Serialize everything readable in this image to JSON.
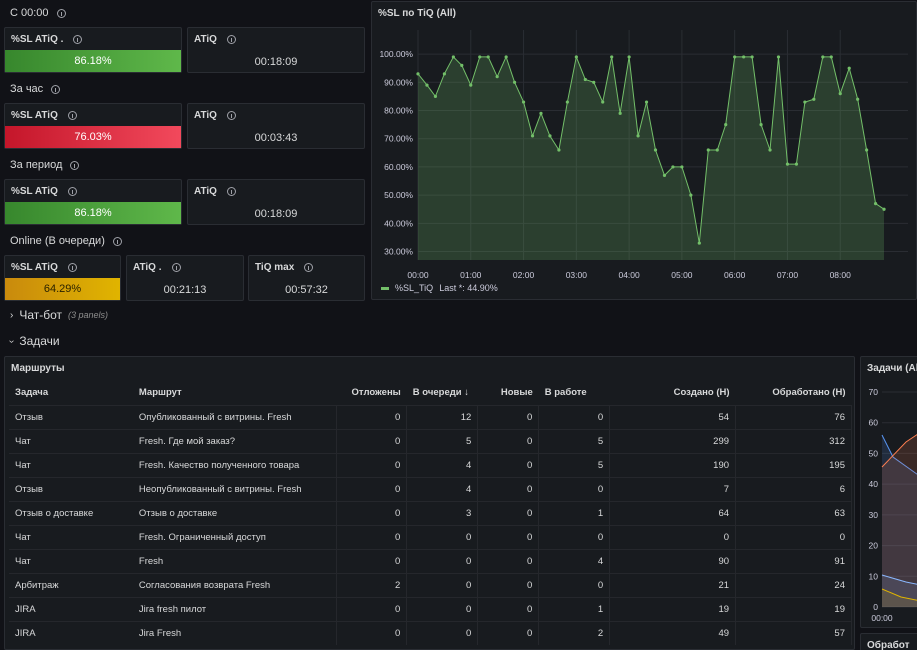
{
  "sections": {
    "today": "С 00:00",
    "hour": "За час",
    "period": "За период",
    "online": "Online (В очереди)"
  },
  "stats": {
    "today_sl": {
      "title": "%SL ATiQ .",
      "value": "86.18%"
    },
    "today_atiq": {
      "title": "ATiQ",
      "value": "00:18:09"
    },
    "hour_sl": {
      "title": "%SL ATiQ",
      "value": "76.03%"
    },
    "hour_atiq": {
      "title": "ATiQ",
      "value": "00:03:43"
    },
    "period_sl": {
      "title": "%SL ATiQ",
      "value": "86.18%"
    },
    "period_atiq": {
      "title": "ATiQ",
      "value": "00:18:09"
    },
    "online_sl": {
      "title": "%SL ATiQ",
      "value": "64.29%"
    },
    "online_atiq": {
      "title": "ATiQ .",
      "value": "00:21:13"
    },
    "online_max": {
      "title": "TiQ max",
      "value": "00:57:32"
    }
  },
  "colors": {
    "green": "#73bf69",
    "red": "#f2495c",
    "yellow": "#e0b400"
  },
  "chart_panel": {
    "title": "%SL по TiQ (All)",
    "legend_name": "%SL_TiQ",
    "legend_last": "Last *: 44.90%"
  },
  "chart_data": {
    "type": "area",
    "xlabel": "",
    "ylabel": "",
    "ylim": [
      27,
      105
    ],
    "yticks": [
      "100.00%",
      "90.00%",
      "80.00%",
      "70.00%",
      "60.00%",
      "50.00%",
      "40.00%",
      "30.00%"
    ],
    "xticks": [
      "00:00",
      "01:00",
      "02:00",
      "03:00",
      "04:00",
      "05:00",
      "06:00",
      "07:00",
      "08:00"
    ],
    "x_hours": [
      0.0,
      0.17,
      0.33,
      0.5,
      0.67,
      0.83,
      1.0,
      1.17,
      1.33,
      1.5,
      1.67,
      1.83,
      2.0,
      2.17,
      2.33,
      2.5,
      2.67,
      2.83,
      3.0,
      3.17,
      3.33,
      3.5,
      3.67,
      3.83,
      4.0,
      4.17,
      4.33,
      4.5,
      4.67,
      4.83,
      5.0,
      5.17,
      5.33,
      5.5,
      5.67,
      5.83,
      6.0,
      6.17,
      6.33,
      6.5,
      6.67,
      6.83,
      7.0,
      7.17,
      7.33,
      7.5,
      7.67,
      7.83,
      8.0,
      8.17,
      8.33,
      8.5,
      8.67,
      8.83
    ],
    "series": [
      {
        "name": "%SL_TiQ",
        "values": [
          93,
          89,
          85,
          93,
          99,
          96,
          89,
          99,
          99,
          92,
          99,
          90,
          83,
          71,
          79,
          71,
          66,
          83,
          99,
          91,
          90,
          83,
          99,
          79,
          99,
          71,
          83,
          66,
          57,
          60,
          60,
          50,
          33,
          66,
          66,
          75,
          99,
          99,
          99,
          75,
          66,
          99,
          61,
          61,
          83,
          84,
          99,
          99,
          86,
          95,
          84,
          66,
          47,
          45
        ]
      }
    ],
    "grid": true,
    "legend": "bottom-left"
  },
  "rows": {
    "chatbot": {
      "label": "Чат-бот",
      "note": "(3 panels)",
      "chevron": "›"
    },
    "tasks": {
      "label": "Задачи",
      "chevron": "›"
    }
  },
  "routes": {
    "title": "Маршруты",
    "headers": [
      "Задача",
      "Маршрут",
      "Отложены",
      "В очереди",
      "Новые",
      "В работе",
      "Создано (Н)",
      "Обработано (Н)"
    ],
    "sort_arrow": "↓",
    "rows": [
      [
        "Отзыв",
        "Опубликованный с витрины. Fresh",
        "0",
        "12",
        "0",
        "0",
        "54",
        "76"
      ],
      [
        "Чат",
        "Fresh. Где мой заказ?",
        "0",
        "5",
        "0",
        "5",
        "299",
        "312"
      ],
      [
        "Чат",
        "Fresh. Качество полученного товара",
        "0",
        "4",
        "0",
        "5",
        "190",
        "195"
      ],
      [
        "Отзыв",
        "Неопубликованный с витрины. Fresh",
        "0",
        "4",
        "0",
        "0",
        "7",
        "6"
      ],
      [
        "Отзыв о доставке",
        "Отзыв о доставке",
        "0",
        "3",
        "0",
        "1",
        "64",
        "63"
      ],
      [
        "Чат",
        "Fresh. Ограниченный доступ",
        "0",
        "0",
        "0",
        "0",
        "0",
        "0"
      ],
      [
        "Чат",
        "Fresh",
        "0",
        "0",
        "0",
        "4",
        "90",
        "91"
      ],
      [
        "Арбитраж",
        "Согласования возврата Fresh",
        "2",
        "0",
        "0",
        "0",
        "21",
        "24"
      ],
      [
        "JIRA",
        "Jira fresh пилот",
        "0",
        "0",
        "0",
        "1",
        "19",
        "19"
      ],
      [
        "JIRA",
        "Jira Fresh",
        "0",
        "0",
        "0",
        "2",
        "49",
        "57"
      ]
    ]
  },
  "tasks_panel": {
    "title": "Задачи (All",
    "yticks": [
      "70",
      "60",
      "50",
      "40",
      "30",
      "20",
      "10",
      "0"
    ],
    "xtick": "00:00"
  },
  "bottom_panel": {
    "title": "Обработ"
  }
}
